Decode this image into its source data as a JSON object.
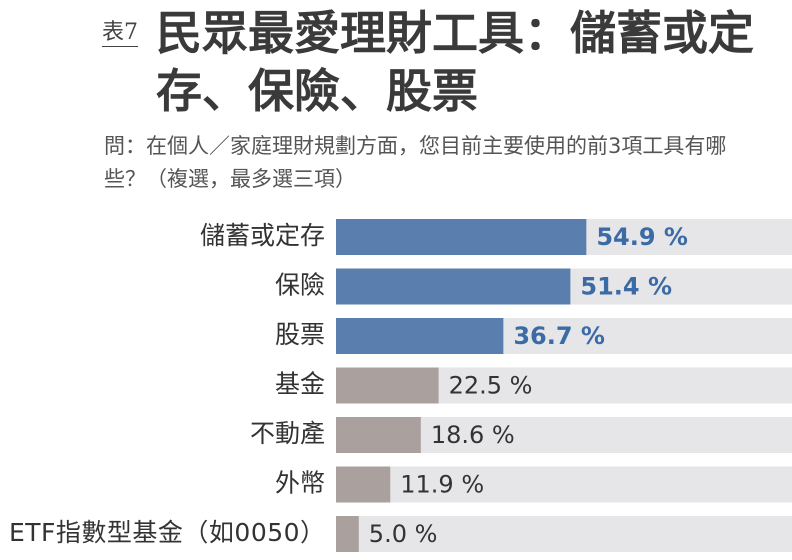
{
  "chart_data": {
    "type": "bar",
    "orientation": "horizontal",
    "table_label": "表7",
    "title": "民眾最愛理財工具：儲蓄或定存、保險、股票",
    "subtitle": "問：在個人／家庭理財規劃方面，您目前主要使用的前3項工具有哪些？（複選，最多選三項）",
    "categories": [
      "儲蓄或定存",
      "保險",
      "股票",
      "基金",
      "不動產",
      "外幣",
      "ETF指數型基金（如0050）"
    ],
    "values": [
      54.9,
      51.4,
      36.7,
      22.5,
      18.6,
      11.9,
      5.0
    ],
    "value_labels": [
      "54.9 %",
      "51.4 %",
      "36.7 %",
      "22.5 %",
      "18.6 %",
      "11.9 %",
      "5.0 %"
    ],
    "colors": [
      "#5a7fae",
      "#5a7fae",
      "#5a7fae",
      "#aaa09e",
      "#aaa09e",
      "#aaa09e",
      "#aaa09e"
    ],
    "label_colors": [
      "#3b6ba5",
      "#3b6ba5",
      "#3b6ba5",
      "#333333",
      "#333333",
      "#333333",
      "#333333"
    ],
    "track_color": "#e6e5e8",
    "xlim": [
      0,
      100
    ]
  }
}
